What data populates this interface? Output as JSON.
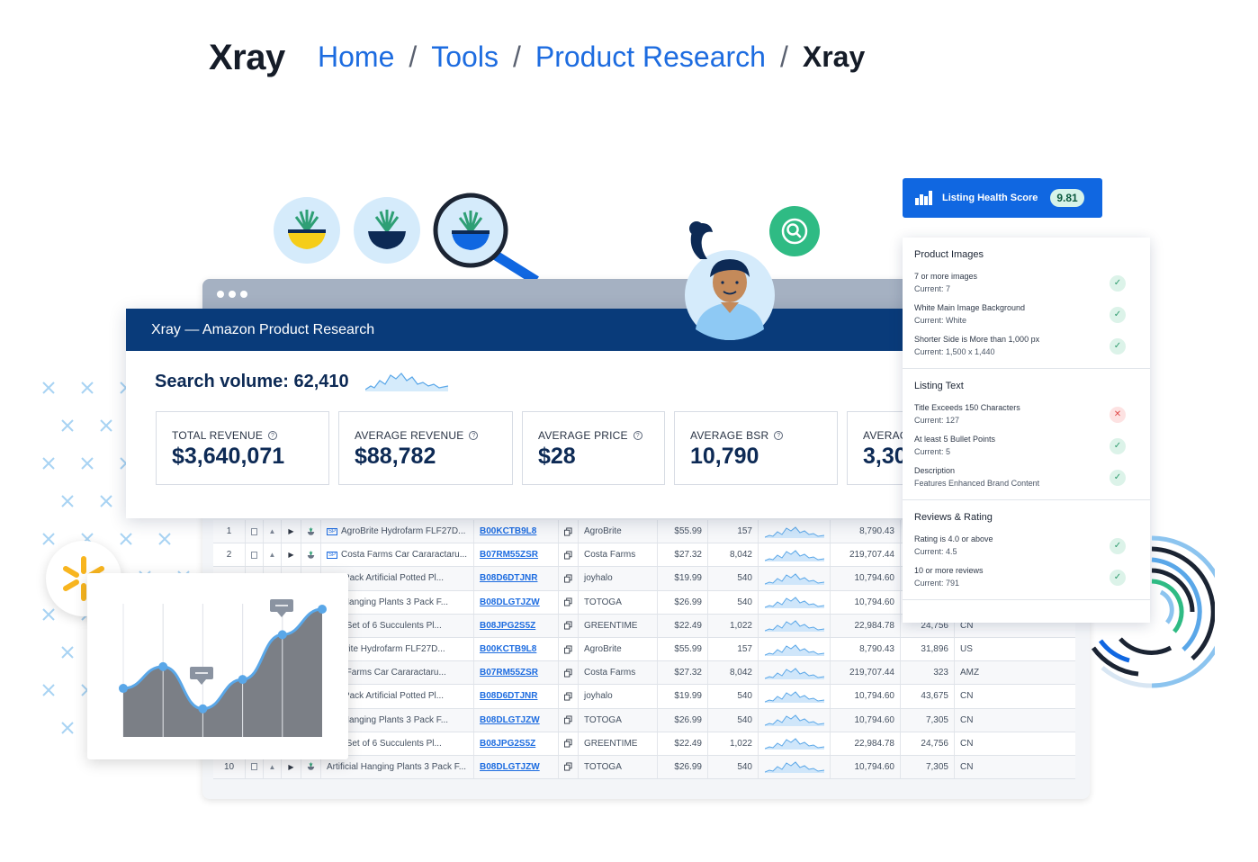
{
  "header": {
    "logo": "Xray",
    "breadcrumb": [
      {
        "label": "Home",
        "link": true
      },
      {
        "label": "Tools",
        "link": true
      },
      {
        "label": "Product Research",
        "link": true
      },
      {
        "label": "Xray",
        "link": false
      }
    ],
    "separator": "/"
  },
  "xray_window": {
    "title": "Xray — Amazon Product Research",
    "search_volume": "Search volume: 62,410",
    "stats": [
      {
        "label": "TOTAL REVENUE",
        "value": "$3,640,071"
      },
      {
        "label": "AVERAGE REVENUE",
        "value": "$88,782"
      },
      {
        "label": "AVERAGE PRICE",
        "value": "$28"
      },
      {
        "label": "AVERAGE BSR",
        "value": "10,790"
      },
      {
        "label": "AVERAG",
        "value": "3,30"
      }
    ]
  },
  "table": {
    "rows": [
      {
        "num": "1",
        "sp": true,
        "name": "AgroBrite Hydrofarm FLF27D...",
        "asin": "B00KCTB9L8",
        "brand": "AgroBrite",
        "price": "$55.99",
        "bsr": "157",
        "revenue": "8,790.43",
        "sales": "",
        "country": ""
      },
      {
        "num": "2",
        "sp": true,
        "name": "Costa Farms Car Cararactaru...",
        "asin": "B07RM55ZSR",
        "brand": "Costa Farms",
        "price": "$27.32",
        "bsr": "8,042",
        "revenue": "219,707.44",
        "sales": "",
        "country": ""
      },
      {
        "num": "",
        "sp": false,
        "name": "lo 3 Pack Artificial Potted Pl...",
        "asin": "B08D6DTJNR",
        "brand": "joyhalo",
        "price": "$19.99",
        "bsr": "540",
        "revenue": "10,794.60",
        "sales": "",
        "country": ""
      },
      {
        "num": "",
        "sp": false,
        "name": "cial Hanging Plants 3 Pack F...",
        "asin": "B08DLGTJZW",
        "brand": "TOTOGA",
        "price": "$26.99",
        "bsr": "540",
        "revenue": "10,794.60",
        "sales": "",
        "country": ""
      },
      {
        "num": "",
        "sp": false,
        "name": "time Set of 6 Succulents Pl...",
        "asin": "B08JPG2S5Z",
        "brand": "GREENTIME",
        "price": "$22.49",
        "bsr": "1,022",
        "revenue": "22,984.78",
        "sales": "24,756",
        "country": "CN"
      },
      {
        "num": "",
        "sp": false,
        "name": "groBrite Hydrofarm FLF27D...",
        "asin": "B00KCTB9L8",
        "brand": "AgroBrite",
        "price": "$55.99",
        "bsr": "157",
        "revenue": "8,790.43",
        "sales": "31,896",
        "country": "US"
      },
      {
        "num": "",
        "sp": false,
        "name": "osta Farms Car Cararactaru...",
        "asin": "B07RM55ZSR",
        "brand": "Costa Farms",
        "price": "$27.32",
        "bsr": "8,042",
        "revenue": "219,707.44",
        "sales": "323",
        "country": "AMZ"
      },
      {
        "num": "",
        "sp": false,
        "name": "lo 3 Pack Artificial Potted Pl...",
        "asin": "B08D6DTJNR",
        "brand": "joyhalo",
        "price": "$19.99",
        "bsr": "540",
        "revenue": "10,794.60",
        "sales": "43,675",
        "country": "CN"
      },
      {
        "num": "",
        "sp": false,
        "name": "cial Hanging Plants 3 Pack F...",
        "asin": "B08DLGTJZW",
        "brand": "TOTOGA",
        "price": "$26.99",
        "bsr": "540",
        "revenue": "10,794.60",
        "sales": "7,305",
        "country": "CN"
      },
      {
        "num": "",
        "sp": false,
        "name": "time Set of 6 Succulents Pl...",
        "asin": "B08JPG2S5Z",
        "brand": "GREENTIME",
        "price": "$22.49",
        "bsr": "1,022",
        "revenue": "22,984.78",
        "sales": "24,756",
        "country": "CN"
      },
      {
        "num": "10",
        "sp": false,
        "name": "Artificial Hanging Plants 3 Pack F...",
        "asin": "B08DLGTJZW",
        "brand": "TOTOGA",
        "price": "$26.99",
        "bsr": "540",
        "revenue": "10,794.60",
        "sales": "7,305",
        "country": "CN"
      }
    ]
  },
  "listing_health": {
    "button_label": "Listing Health Score",
    "score": "9.81",
    "sections": [
      {
        "title": "Product Images",
        "items": [
          {
            "label": "7 or more images",
            "sub": "Current: 7",
            "ok": true
          },
          {
            "label": "White Main Image Background",
            "sub": "Current: White",
            "ok": true
          },
          {
            "label": "Shorter Side is More than 1,000 px",
            "sub": "Current: 1,500 x 1,440",
            "ok": true
          }
        ]
      },
      {
        "title": "Listing Text",
        "items": [
          {
            "label": "Title Exceeds 150 Characters",
            "sub": "Current: 127",
            "ok": false
          },
          {
            "label": "At least 5 Bullet Points",
            "sub": "Current: 5",
            "ok": true
          },
          {
            "label": "Description",
            "sub": "Features Enhanced Brand Content",
            "ok": true
          }
        ]
      },
      {
        "title": "Reviews & Rating",
        "items": [
          {
            "label": "Rating is 4.0 or above",
            "sub": "Current: 4.5",
            "ok": true
          },
          {
            "label": "10 or more reviews",
            "sub": "Current: 791",
            "ok": true
          }
        ]
      }
    ]
  },
  "colors": {
    "brand_blue": "#1067e1",
    "navy": "#093b7a",
    "success": "#2fbb84",
    "error": "#e04b4b",
    "walmart_yellow": "#f8b51f"
  },
  "icons": {
    "health_button": "bar-chart-icon",
    "search_bubble": "search-icon",
    "walmart": "walmart-spark-icon"
  },
  "mini_chart": {
    "points": [
      38,
      55,
      22,
      45,
      80,
      100
    ]
  }
}
